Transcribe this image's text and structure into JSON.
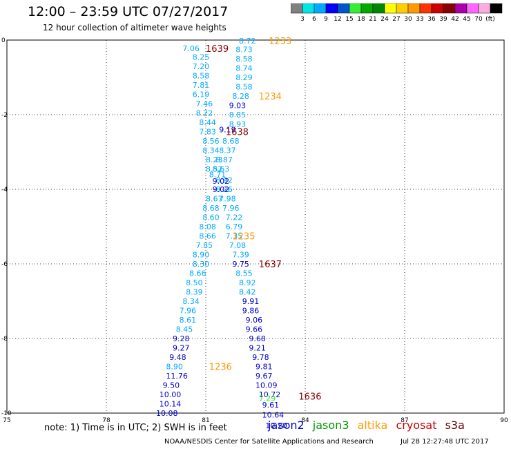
{
  "title": "12:00 – 23:59 UTC 07/27/2017",
  "subtitle": "12 hour collection of altimeter wave heights",
  "footnote": "note: 1) Time is in UTC; 2) SWH is in feet",
  "credit": "NOAA/NESDIS Center for Satellite Applications and Research",
  "timestamp": "Jul 28 12:27:48 UTC 2017",
  "legend": [
    {
      "name": "jason2",
      "color": "#0000cc"
    },
    {
      "name": "jason3",
      "color": "#009900"
    },
    {
      "name": "altika",
      "color": "#ff9900"
    },
    {
      "name": "cryosat",
      "color": "#cc0000"
    },
    {
      "name": "s3a",
      "color": "#660000"
    }
  ],
  "colorbar": {
    "colors": [
      "#808080",
      "#00e5e5",
      "#00aaff",
      "#0000ff",
      "#0055cc",
      "#33ee33",
      "#00aa00",
      "#008800",
      "#ffff00",
      "#ffcc00",
      "#ff9900",
      "#ff3300",
      "#cc0000",
      "#880000",
      "#aa00aa",
      "#ff66ff",
      "#ffaadd",
      "#000000"
    ],
    "labels": [
      "3",
      "6",
      "9",
      "12",
      "15",
      "18",
      "21",
      "24",
      "27",
      "30",
      "33",
      "36",
      "39",
      "42",
      "45",
      "70",
      "(ft)"
    ]
  },
  "chart_data": {
    "type": "scatter",
    "title": "12:00 – 23:59 UTC 07/27/2017",
    "subtitle": "12 hour collection of altimeter wave heights",
    "xlabel": "",
    "ylabel": "",
    "xlim": [
      75,
      90
    ],
    "ylim": [
      -10,
      0
    ],
    "x_ticks": [
      "75",
      "78",
      "81",
      "84",
      "87",
      "90"
    ],
    "y_ticks": [
      "0",
      "-2",
      "-4",
      "-6",
      "-8",
      "-10"
    ],
    "grid": true,
    "legend_position": "bottom",
    "wave_heights": [
      {
        "x": 82.0,
        "y": -0.02,
        "label": "8.72",
        "color": "#00aaff"
      },
      {
        "x": 81.9,
        "y": -0.25,
        "label": "8.73",
        "color": "#00aaff"
      },
      {
        "x": 81.9,
        "y": -0.5,
        "label": "8.58",
        "color": "#00aaff"
      },
      {
        "x": 81.9,
        "y": -0.75,
        "label": "8.74",
        "color": "#00aaff"
      },
      {
        "x": 81.9,
        "y": -1.0,
        "label": "8.29",
        "color": "#00aaff"
      },
      {
        "x": 81.9,
        "y": -1.25,
        "label": "8.58",
        "color": "#00aaff"
      },
      {
        "x": 81.8,
        "y": -1.5,
        "label": "8.28",
        "color": "#00aaff"
      },
      {
        "x": 81.7,
        "y": -1.75,
        "label": "9.03",
        "color": "#0000cc"
      },
      {
        "x": 81.7,
        "y": -2.0,
        "label": "8.85",
        "color": "#00aaff"
      },
      {
        "x": 81.7,
        "y": -2.25,
        "label": "8.93",
        "color": "#00aaff"
      },
      {
        "x": 81.4,
        "y": -2.4,
        "label": "9.19",
        "color": "#0000cc"
      },
      {
        "x": 81.5,
        "y": -2.7,
        "label": "8.68",
        "color": "#00aaff"
      },
      {
        "x": 81.4,
        "y": -2.95,
        "label": "8.37",
        "color": "#00aaff"
      },
      {
        "x": 81.3,
        "y": -3.2,
        "label": "8.87",
        "color": "#00aaff"
      },
      {
        "x": 81.2,
        "y": -3.45,
        "label": "8.63",
        "color": "#00aaff"
      },
      {
        "x": 81.3,
        "y": -3.75,
        "label": "8.92",
        "color": "#00aaff"
      },
      {
        "x": 81.3,
        "y": -4.0,
        "label": "8.26",
        "color": "#00aaff"
      },
      {
        "x": 81.4,
        "y": -4.25,
        "label": "7.98",
        "color": "#00aaff"
      },
      {
        "x": 81.5,
        "y": -4.5,
        "label": "7.96",
        "color": "#00aaff"
      },
      {
        "x": 81.6,
        "y": -4.75,
        "label": "7.22",
        "color": "#00aaff"
      },
      {
        "x": 81.6,
        "y": -5.0,
        "label": "6.79",
        "color": "#00aaff"
      },
      {
        "x": 81.6,
        "y": -5.25,
        "label": "7.35",
        "color": "#00aaff"
      },
      {
        "x": 81.7,
        "y": -5.5,
        "label": "7.08",
        "color": "#00aaff"
      },
      {
        "x": 81.8,
        "y": -5.75,
        "label": "7.39",
        "color": "#00aaff"
      },
      {
        "x": 81.8,
        "y": -6.0,
        "label": "9.75",
        "color": "#0000cc"
      },
      {
        "x": 81.9,
        "y": -6.25,
        "label": "8.55",
        "color": "#00aaff"
      },
      {
        "x": 82.0,
        "y": -6.5,
        "label": "8.92",
        "color": "#00aaff"
      },
      {
        "x": 82.0,
        "y": -6.75,
        "label": "8.42",
        "color": "#00aaff"
      },
      {
        "x": 82.1,
        "y": -7.0,
        "label": "9.91",
        "color": "#0000cc"
      },
      {
        "x": 82.1,
        "y": -7.25,
        "label": "9.86",
        "color": "#0000cc"
      },
      {
        "x": 82.2,
        "y": -7.5,
        "label": "9.06",
        "color": "#0000cc"
      },
      {
        "x": 82.2,
        "y": -7.75,
        "label": "9.66",
        "color": "#0000cc"
      },
      {
        "x": 82.3,
        "y": -8.0,
        "label": "9.68",
        "color": "#0000cc"
      },
      {
        "x": 82.3,
        "y": -8.25,
        "label": "9.21",
        "color": "#0000cc"
      },
      {
        "x": 82.4,
        "y": -8.5,
        "label": "9.78",
        "color": "#0000cc"
      },
      {
        "x": 82.5,
        "y": -8.75,
        "label": "9.81",
        "color": "#0000cc"
      },
      {
        "x": 82.5,
        "y": -9.0,
        "label": "9.67",
        "color": "#0000cc"
      },
      {
        "x": 82.5,
        "y": -9.25,
        "label": "10.09",
        "color": "#0000cc"
      },
      {
        "x": 82.6,
        "y": -9.5,
        "label": "10.72",
        "color": "#0000cc"
      },
      {
        "x": 82.6,
        "y": -9.6,
        "label": "7.29",
        "color": "#33ee33"
      },
      {
        "x": 82.7,
        "y": -9.78,
        "label": "9.61",
        "color": "#0000cc"
      },
      {
        "x": 82.7,
        "y": -10.05,
        "label": "10.64",
        "color": "#0000cc"
      },
      {
        "x": 82.8,
        "y": -10.33,
        "label": "10.20",
        "color": "#0000cc"
      },
      {
        "x": 80.3,
        "y": -0.22,
        "label": "7.06",
        "color": "#00aaff"
      },
      {
        "x": 80.6,
        "y": -0.45,
        "label": "8.25",
        "color": "#00aaff"
      },
      {
        "x": 80.6,
        "y": -0.7,
        "label": "7.20",
        "color": "#00aaff"
      },
      {
        "x": 80.6,
        "y": -0.95,
        "label": "8.58",
        "color": "#00aaff"
      },
      {
        "x": 80.6,
        "y": -1.2,
        "label": "7.81",
        "color": "#00aaff"
      },
      {
        "x": 80.6,
        "y": -1.45,
        "label": "6.19",
        "color": "#00aaff"
      },
      {
        "x": 80.7,
        "y": -1.7,
        "label": "7.46",
        "color": "#00aaff"
      },
      {
        "x": 80.7,
        "y": -1.95,
        "label": "8.22",
        "color": "#00aaff"
      },
      {
        "x": 80.8,
        "y": -2.2,
        "label": "8.44",
        "color": "#00aaff"
      },
      {
        "x": 80.8,
        "y": -2.45,
        "label": "7.83",
        "color": "#00aaff"
      },
      {
        "x": 80.9,
        "y": -2.7,
        "label": "8.56",
        "color": "#00aaff"
      },
      {
        "x": 80.9,
        "y": -2.95,
        "label": "8.34",
        "color": "#00aaff"
      },
      {
        "x": 81.0,
        "y": -3.2,
        "label": "8.23",
        "color": "#00aaff"
      },
      {
        "x": 81.0,
        "y": -3.45,
        "label": "8.52",
        "color": "#00aaff"
      },
      {
        "x": 81.1,
        "y": -3.6,
        "label": "8.71",
        "color": "#00aaff"
      },
      {
        "x": 81.2,
        "y": -3.78,
        "label": "9.02",
        "color": "#0000cc"
      },
      {
        "x": 81.2,
        "y": -4.0,
        "label": "9.02",
        "color": "#0000cc"
      },
      {
        "x": 81.0,
        "y": -4.25,
        "label": "8.67",
        "color": "#00aaff"
      },
      {
        "x": 80.9,
        "y": -4.5,
        "label": "8.68",
        "color": "#00aaff"
      },
      {
        "x": 80.9,
        "y": -4.75,
        "label": "8.60",
        "color": "#00aaff"
      },
      {
        "x": 80.8,
        "y": -5.0,
        "label": "8.08",
        "color": "#00aaff"
      },
      {
        "x": 80.8,
        "y": -5.25,
        "label": "8.66",
        "color": "#00aaff"
      },
      {
        "x": 80.7,
        "y": -5.5,
        "label": "7.85",
        "color": "#00aaff"
      },
      {
        "x": 80.6,
        "y": -5.75,
        "label": "8.90",
        "color": "#00aaff"
      },
      {
        "x": 80.6,
        "y": -6.0,
        "label": "8.30",
        "color": "#00aaff"
      },
      {
        "x": 80.5,
        "y": -6.25,
        "label": "8.66",
        "color": "#00aaff"
      },
      {
        "x": 80.4,
        "y": -6.5,
        "label": "8.50",
        "color": "#00aaff"
      },
      {
        "x": 80.4,
        "y": -6.75,
        "label": "8.39",
        "color": "#00aaff"
      },
      {
        "x": 80.3,
        "y": -7.0,
        "label": "8.34",
        "color": "#00aaff"
      },
      {
        "x": 80.2,
        "y": -7.25,
        "label": "7.96",
        "color": "#00aaff"
      },
      {
        "x": 80.2,
        "y": -7.5,
        "label": "8.61",
        "color": "#00aaff"
      },
      {
        "x": 80.1,
        "y": -7.75,
        "label": "8.45",
        "color": "#00aaff"
      },
      {
        "x": 80.0,
        "y": -8.0,
        "label": "9.28",
        "color": "#0000cc"
      },
      {
        "x": 80.0,
        "y": -8.25,
        "label": "9.27",
        "color": "#0000cc"
      },
      {
        "x": 79.9,
        "y": -8.5,
        "label": "9.48",
        "color": "#0000cc"
      },
      {
        "x": 79.8,
        "y": -8.75,
        "label": "8.90",
        "color": "#00aaff"
      },
      {
        "x": 79.8,
        "y": -9.0,
        "label": "11.76",
        "color": "#0000cc"
      },
      {
        "x": 79.7,
        "y": -9.25,
        "label": "9.50",
        "color": "#0000cc"
      },
      {
        "x": 79.6,
        "y": -9.5,
        "label": "10.00",
        "color": "#0000cc"
      },
      {
        "x": 79.6,
        "y": -9.75,
        "label": "10.14",
        "color": "#0000cc"
      },
      {
        "x": 79.5,
        "y": -10.0,
        "label": "10.08",
        "color": "#0000cc"
      }
    ],
    "pass_times": [
      {
        "x": 82.9,
        "y": -0.02,
        "label": "1233",
        "color": "#ff9900"
      },
      {
        "x": 81.0,
        "y": -0.22,
        "label": "1639",
        "color": "#880000"
      },
      {
        "x": 82.6,
        "y": -1.5,
        "label": "1234",
        "color": "#ff9900"
      },
      {
        "x": 81.6,
        "y": -2.45,
        "label": "1638",
        "color": "#880000"
      },
      {
        "x": 81.8,
        "y": -5.25,
        "label": "1235",
        "color": "#ff9900"
      },
      {
        "x": 82.6,
        "y": -6.0,
        "label": "1637",
        "color": "#880000"
      },
      {
        "x": 81.1,
        "y": -8.75,
        "label": "1236",
        "color": "#ff9900"
      },
      {
        "x": 83.8,
        "y": -9.55,
        "label": "1636",
        "color": "#880000"
      }
    ]
  }
}
